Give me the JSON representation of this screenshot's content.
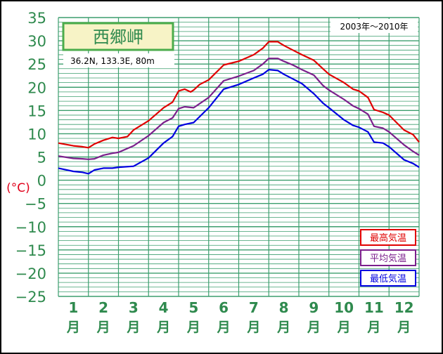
{
  "chart_data": {
    "type": "line",
    "title": "西郷岬",
    "location": "36.2N, 133.3E, 80m",
    "period": "2003年〜2010年",
    "unit": "(°C)",
    "ylim": [
      -25,
      35
    ],
    "yticks": [
      35,
      30,
      25,
      20,
      15,
      10,
      5,
      0,
      -5,
      -10,
      -15,
      -20,
      -25
    ],
    "xlim": [
      0.5,
      12.5
    ],
    "months": [
      {
        "num": "1",
        "label": "月"
      },
      {
        "num": "2",
        "label": "月"
      },
      {
        "num": "3",
        "label": "月"
      },
      {
        "num": "4",
        "label": "月"
      },
      {
        "num": "5",
        "label": "月"
      },
      {
        "num": "6",
        "label": "月"
      },
      {
        "num": "7",
        "label": "月"
      },
      {
        "num": "8",
        "label": "月"
      },
      {
        "num": "9",
        "label": "月"
      },
      {
        "num": "10",
        "label": "月"
      },
      {
        "num": "11",
        "label": "月"
      },
      {
        "num": "12",
        "label": "月"
      }
    ],
    "grid": true,
    "legend_position": "bottom-right",
    "colors": {
      "frame": "#000000",
      "grid": "#3c9e6e",
      "axis_text": "#2f8a4e",
      "unit_text": "#e0001a",
      "title_border": "#4bac4b",
      "title_bg": "#f7f3c6"
    },
    "series": [
      {
        "name": "最高気温",
        "color": "#e00000",
        "x": [
          0.5,
          1.0,
          1.3,
          1.5,
          1.7,
          2.0,
          2.3,
          2.5,
          2.8,
          3.0,
          3.5,
          4.0,
          4.3,
          4.5,
          4.7,
          4.9,
          5.0,
          5.2,
          5.5,
          6.0,
          6.5,
          7.0,
          7.3,
          7.5,
          7.8,
          8.0,
          8.3,
          8.6,
          9.0,
          9.3,
          9.5,
          10.0,
          10.3,
          10.5,
          10.8,
          11.0,
          11.3,
          11.5,
          12.0,
          12.3,
          12.5
        ],
        "y": [
          8.0,
          7.4,
          7.2,
          7.0,
          7.8,
          8.6,
          9.2,
          9.0,
          9.4,
          10.8,
          12.8,
          15.6,
          16.8,
          19.2,
          19.6,
          19.0,
          19.4,
          20.6,
          21.6,
          24.8,
          25.6,
          27.0,
          28.4,
          29.8,
          29.8,
          29.0,
          28.0,
          27.0,
          25.8,
          24.0,
          22.8,
          21.0,
          19.6,
          19.2,
          17.8,
          15.2,
          14.6,
          14.0,
          10.8,
          9.8,
          8.2
        ]
      },
      {
        "name": "平均気温",
        "color": "#7b1f8c",
        "x": [
          0.5,
          1.0,
          1.3,
          1.5,
          1.7,
          2.0,
          2.3,
          2.5,
          3.0,
          3.5,
          4.0,
          4.3,
          4.5,
          4.7,
          5.0,
          5.5,
          6.0,
          6.5,
          7.0,
          7.3,
          7.5,
          7.8,
          8.0,
          8.3,
          8.6,
          9.0,
          9.3,
          9.5,
          10.0,
          10.3,
          10.5,
          10.8,
          11.0,
          11.3,
          11.5,
          12.0,
          12.3,
          12.5
        ],
        "y": [
          5.2,
          4.7,
          4.6,
          4.5,
          4.6,
          5.4,
          5.8,
          6.0,
          7.4,
          9.6,
          12.4,
          13.4,
          15.4,
          15.8,
          15.6,
          17.8,
          21.4,
          22.4,
          23.6,
          25.0,
          26.2,
          26.2,
          25.6,
          24.8,
          23.8,
          22.6,
          20.4,
          19.4,
          17.4,
          16.0,
          15.4,
          14.2,
          11.6,
          11.2,
          10.4,
          7.6,
          6.2,
          5.4
        ]
      },
      {
        "name": "最低気温",
        "color": "#0000e0",
        "x": [
          0.5,
          1.0,
          1.3,
          1.5,
          1.7,
          2.0,
          2.3,
          2.5,
          3.0,
          3.5,
          4.0,
          4.3,
          4.5,
          4.7,
          5.0,
          5.5,
          6.0,
          6.5,
          7.0,
          7.3,
          7.5,
          7.8,
          8.0,
          8.3,
          8.6,
          9.0,
          9.3,
          9.5,
          10.0,
          10.3,
          10.5,
          10.8,
          11.0,
          11.3,
          11.5,
          12.0,
          12.3,
          12.5
        ],
        "y": [
          2.6,
          1.9,
          1.7,
          1.4,
          2.2,
          2.6,
          2.6,
          2.8,
          3.0,
          4.8,
          8.0,
          9.4,
          11.6,
          12.0,
          12.4,
          15.6,
          19.6,
          20.6,
          22.0,
          22.8,
          23.8,
          23.6,
          22.8,
          21.8,
          20.8,
          18.6,
          16.6,
          15.6,
          13.0,
          11.8,
          11.4,
          10.4,
          8.2,
          8.0,
          7.2,
          4.4,
          3.6,
          2.8
        ]
      }
    ]
  }
}
